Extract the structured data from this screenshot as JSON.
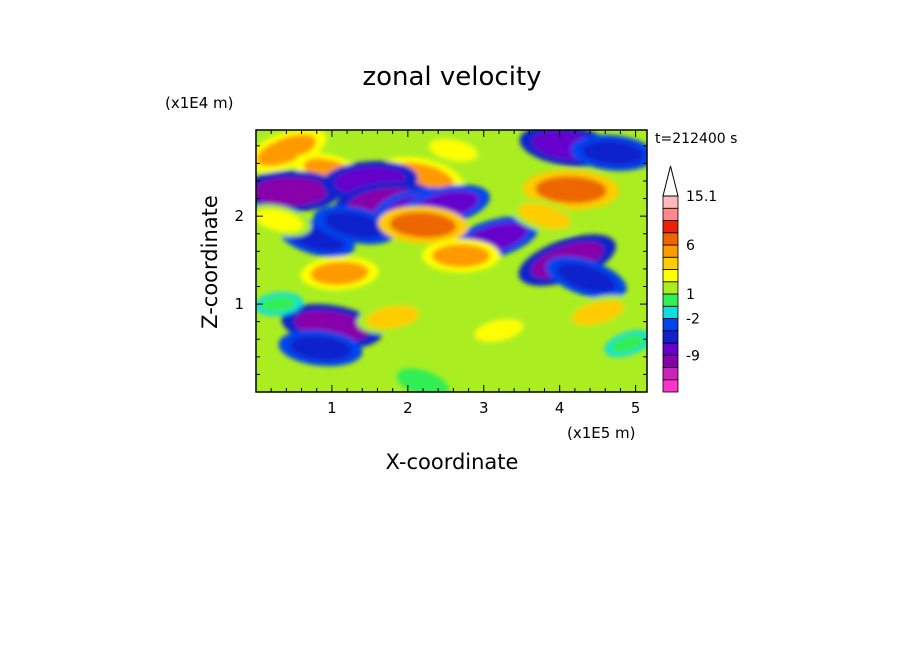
{
  "chart_data": {
    "type": "heatmap",
    "title": "zonal velocity",
    "xlabel": "X-coordinate",
    "ylabel": "Z-coordinate",
    "x_unit": "(x1E5 m)",
    "y_unit": "(x1E4 m)",
    "time_label": "t=212400 s",
    "xlim": [
      0,
      5.15
    ],
    "ylim": [
      0,
      2.98
    ],
    "x_ticks": [
      {
        "value": 1,
        "label": "1"
      },
      {
        "value": 2,
        "label": "2"
      },
      {
        "value": 3,
        "label": "3"
      },
      {
        "value": 4,
        "label": "4"
      },
      {
        "value": 5,
        "label": "5"
      }
    ],
    "y_ticks": [
      {
        "value": 1,
        "label": "1"
      },
      {
        "value": 2,
        "label": "2"
      }
    ],
    "colorbar": {
      "levels": [
        {
          "color": "#ff33cc"
        },
        {
          "color": "#cc22bb"
        },
        {
          "color": "#8800aa",
          "label": "-9"
        },
        {
          "color": "#6600cc"
        },
        {
          "color": "#1122cc"
        },
        {
          "color": "#0044ee",
          "label": "-2"
        },
        {
          "color": "#11dddd"
        },
        {
          "color": "#33ee55",
          "label": "1"
        },
        {
          "color": "#aaee22"
        },
        {
          "color": "#ffff00"
        },
        {
          "color": "#ffcc00"
        },
        {
          "color": "#ff9900",
          "label": "6"
        },
        {
          "color": "#ee6600"
        },
        {
          "color": "#ee2200"
        },
        {
          "color": "#ff8888"
        },
        {
          "color": "#ffbbbb",
          "label": "15.1"
        }
      ],
      "over_arrow_color": "#ffffff"
    },
    "features": [
      {
        "x": 0.4,
        "z": 2.75,
        "value": 6
      },
      {
        "x": 1.0,
        "z": 2.5,
        "value": 5
      },
      {
        "x": 2.2,
        "z": 2.45,
        "value": 6
      },
      {
        "x": 2.6,
        "z": 2.75,
        "value": 3
      },
      {
        "x": 4.1,
        "z": 2.8,
        "value": -8
      },
      {
        "x": 4.7,
        "z": 2.72,
        "value": -6
      },
      {
        "x": 4.15,
        "z": 2.3,
        "value": 8
      },
      {
        "x": 0.45,
        "z": 2.28,
        "value": -9
      },
      {
        "x": 1.5,
        "z": 2.4,
        "value": -8
      },
      {
        "x": 1.7,
        "z": 2.15,
        "value": -9
      },
      {
        "x": 2.15,
        "z": 2.1,
        "value": -7
      },
      {
        "x": 2.5,
        "z": 2.12,
        "value": -7
      },
      {
        "x": 3.15,
        "z": 1.75,
        "value": -7
      },
      {
        "x": 4.1,
        "z": 1.5,
        "value": -9
      },
      {
        "x": 4.35,
        "z": 1.3,
        "value": -6
      },
      {
        "x": 0.8,
        "z": 1.75,
        "value": -5
      },
      {
        "x": 1.3,
        "z": 1.9,
        "value": -6
      },
      {
        "x": 1.0,
        "z": 0.75,
        "value": -9
      },
      {
        "x": 0.85,
        "z": 0.5,
        "value": -6
      },
      {
        "x": 2.2,
        "z": 1.9,
        "value": 7
      },
      {
        "x": 2.7,
        "z": 1.55,
        "value": 5
      },
      {
        "x": 1.1,
        "z": 1.35,
        "value": 5
      },
      {
        "x": 0.3,
        "z": 1.0,
        "value": 0
      },
      {
        "x": 1.8,
        "z": 0.85,
        "value": 4
      },
      {
        "x": 3.2,
        "z": 0.7,
        "value": 3
      },
      {
        "x": 4.5,
        "z": 0.9,
        "value": 4
      },
      {
        "x": 4.9,
        "z": 0.55,
        "value": 0
      },
      {
        "x": 2.2,
        "z": 0.1,
        "value": 1
      },
      {
        "x": 3.8,
        "z": 2.0,
        "value": 4
      },
      {
        "x": 0.3,
        "z": 1.95,
        "value": 3
      }
    ]
  }
}
